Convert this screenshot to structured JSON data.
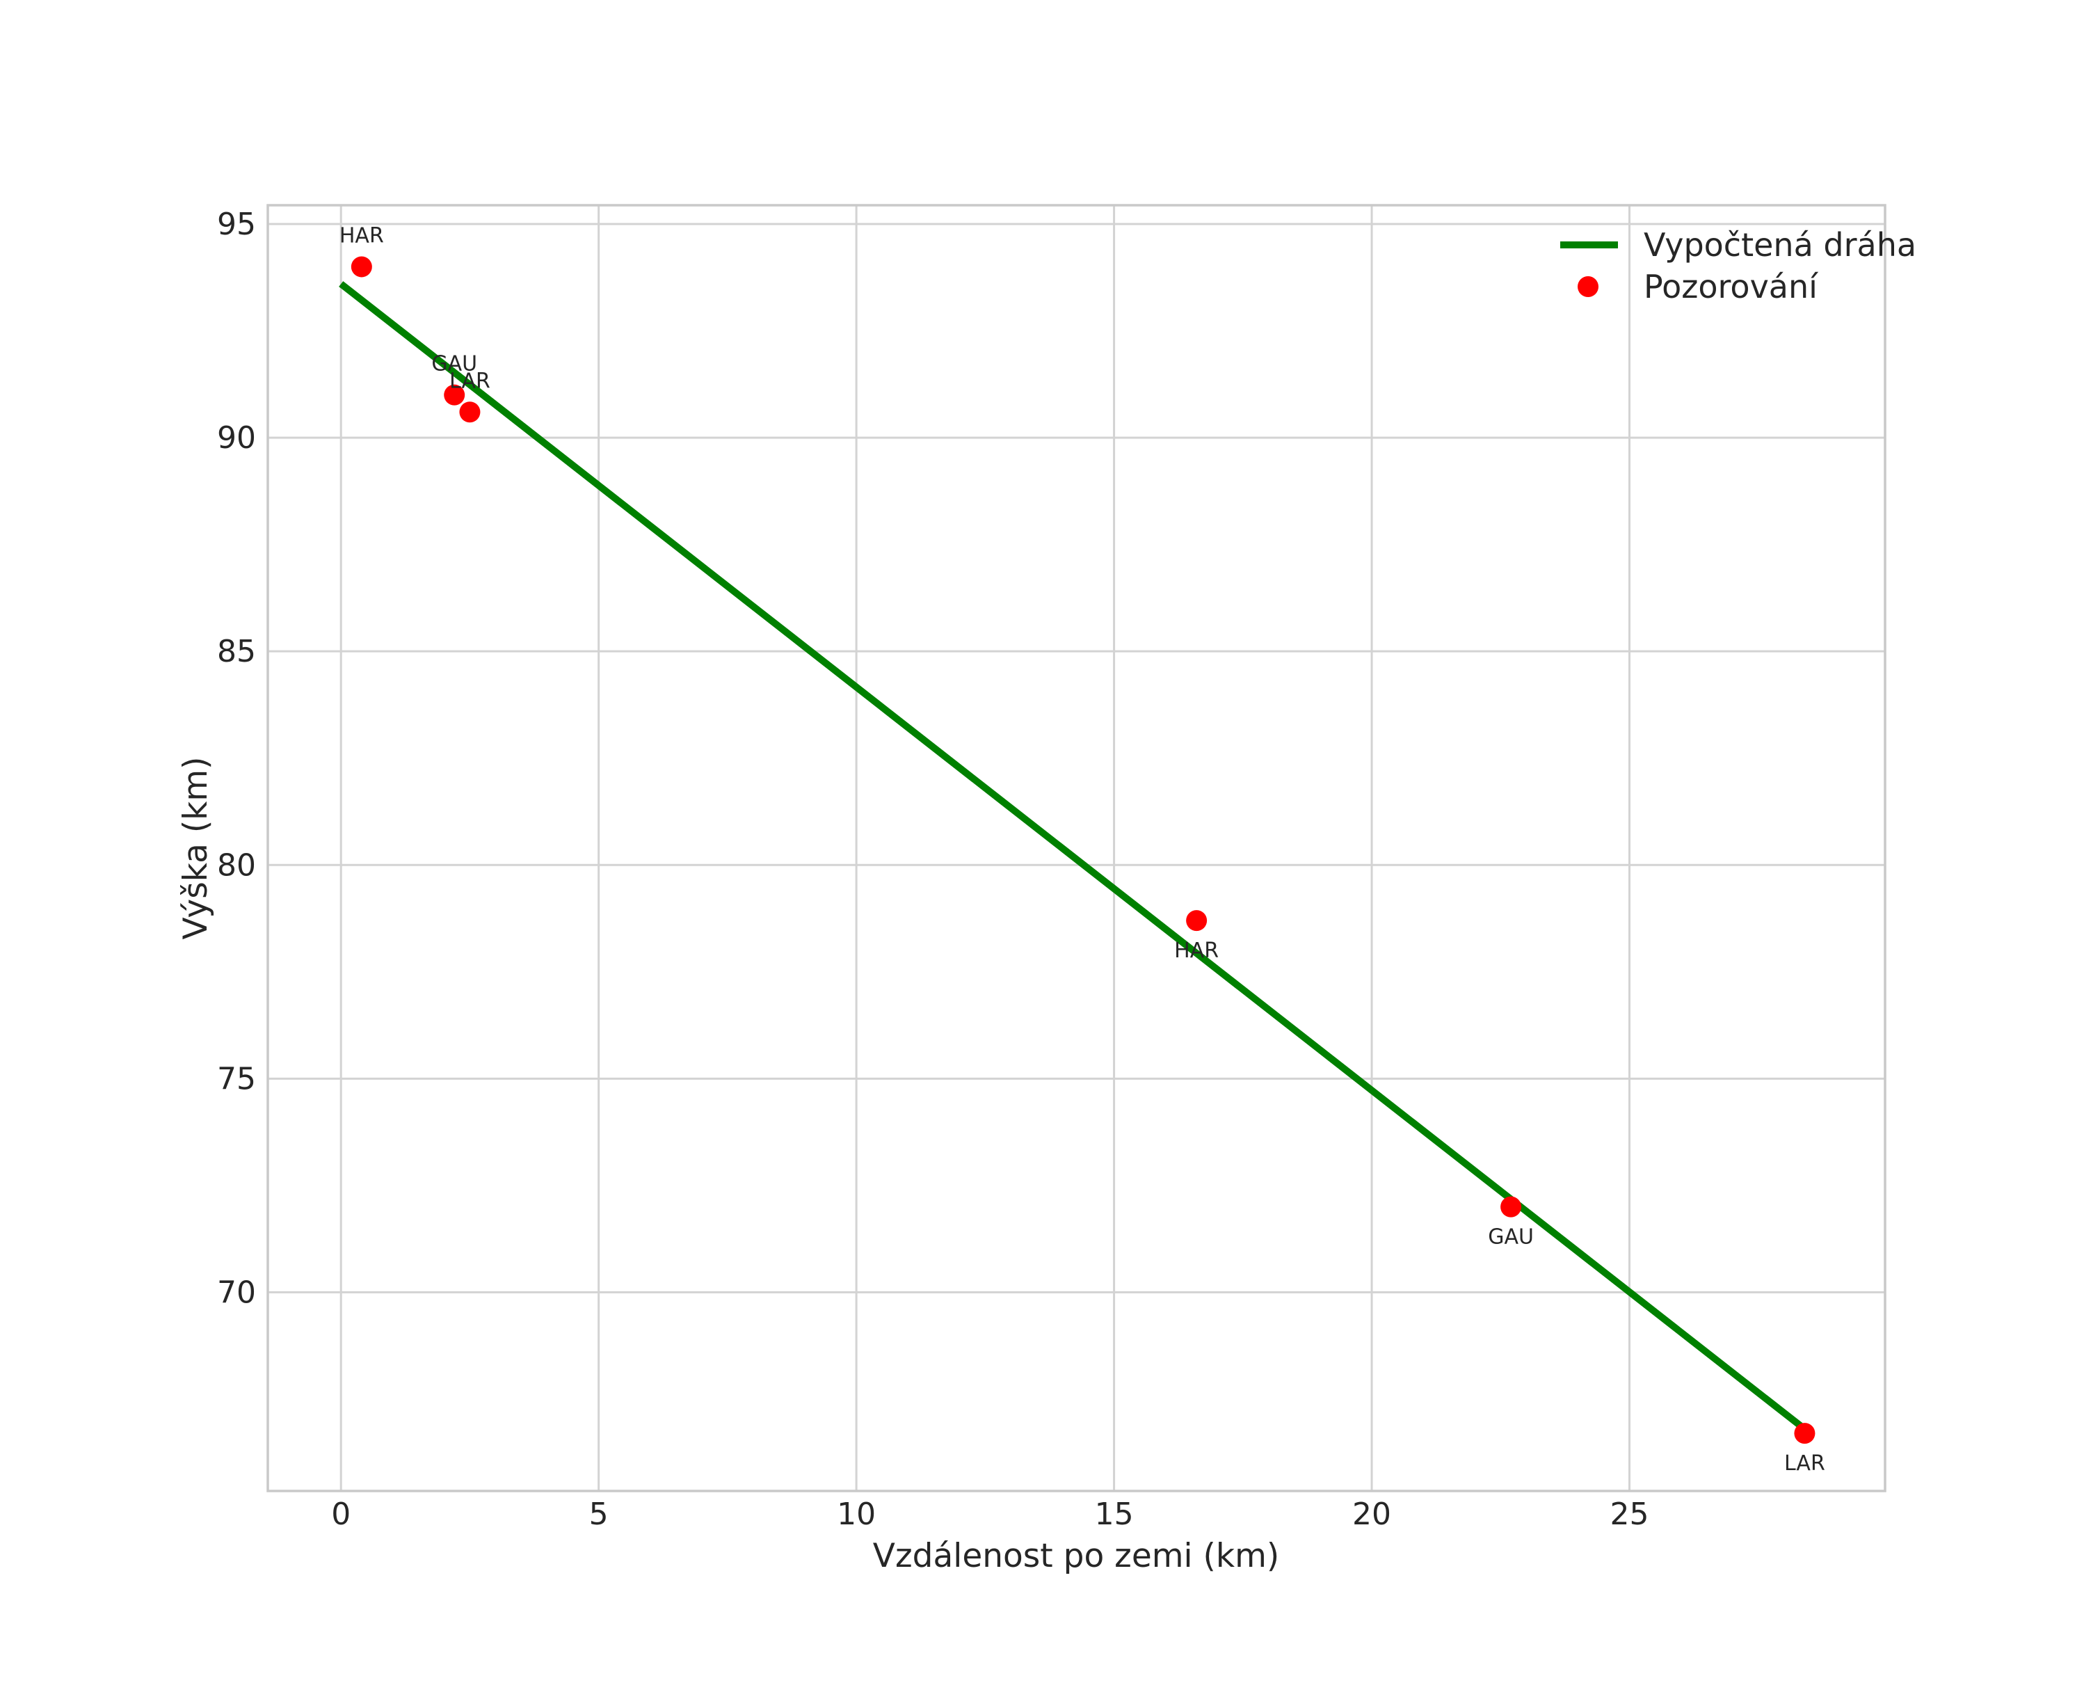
{
  "chart_data": {
    "type": "scatter",
    "title": "",
    "xlabel": "Vzdálenost po zemi (km)",
    "ylabel": "Výška (km)",
    "xlim": [
      -1.42,
      29.96
    ],
    "ylim": [
      65.35,
      95.44
    ],
    "xticks": [
      0,
      5,
      10,
      15,
      20,
      25
    ],
    "yticks": [
      70,
      75,
      80,
      85,
      90,
      95
    ],
    "grid": true,
    "legend_position": "upper right",
    "legend_frame": false,
    "series": [
      {
        "name": "Vypočtená dráha",
        "type": "line",
        "color": "#008000",
        "points": [
          [
            0.0,
            93.6
          ],
          [
            28.4,
            66.8
          ]
        ]
      },
      {
        "name": "Pozorování",
        "type": "scatter",
        "color": "#ff0000",
        "points": [
          {
            "x": 0.4,
            "y": 94.0,
            "label": "HAR",
            "label_side": "above"
          },
          {
            "x": 2.2,
            "y": 91.0,
            "label": "GAU",
            "label_side": "above"
          },
          {
            "x": 2.5,
            "y": 90.6,
            "label": "LAR",
            "label_side": "above"
          },
          {
            "x": 16.6,
            "y": 78.7,
            "label": "HAR",
            "label_side": "below"
          },
          {
            "x": 22.7,
            "y": 72.0,
            "label": "GAU",
            "label_side": "below"
          },
          {
            "x": 28.4,
            "y": 66.7,
            "label": "LAR",
            "label_side": "below"
          }
        ]
      }
    ],
    "legend": [
      {
        "label": "Vypočtená dráha",
        "marker": "line",
        "color": "#008000"
      },
      {
        "label": "Pozorování",
        "marker": "dot",
        "color": "#ff0000"
      }
    ],
    "colors": {
      "background": "#ffffff",
      "grid": "#d3d3d3",
      "spine": "#c9c9c9",
      "text": "#262626"
    }
  }
}
